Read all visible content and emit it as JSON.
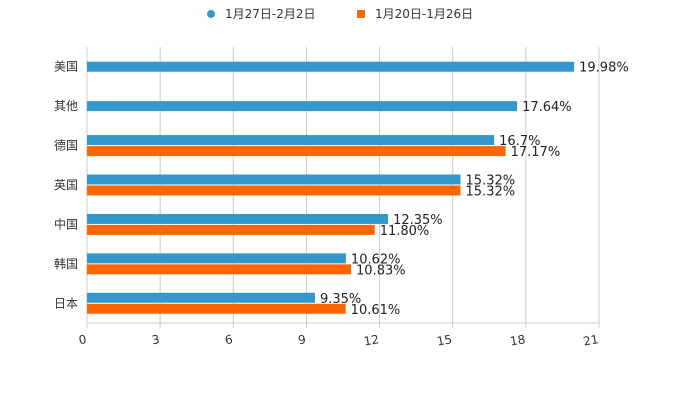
{
  "chart_data": {
    "type": "bar",
    "orientation": "horizontal",
    "categories": [
      "美国",
      "其他",
      "德国",
      "英国",
      "中国",
      "韩国",
      "日本"
    ],
    "series": [
      {
        "name": "1月27日-2月2日",
        "color": "#3399cc",
        "values": [
          19.98,
          17.64,
          16.7,
          15.32,
          12.35,
          10.62,
          9.35
        ],
        "labels": [
          "19.98%",
          "17.64%",
          "16.7%",
          "15.32%",
          "12.35%",
          "10.62%",
          "9.35%"
        ]
      },
      {
        "name": "1月20日-1月26日",
        "color": "#ff6600",
        "values": [
          null,
          null,
          17.17,
          15.32,
          11.8,
          10.83,
          10.61
        ],
        "labels": [
          null,
          null,
          "17.17%",
          "15.32%",
          "11.80%",
          "10.83%",
          "10.61%"
        ]
      }
    ],
    "xlim": [
      0,
      21
    ],
    "xticks": [
      "0",
      "3",
      "6",
      "9",
      "12",
      "15",
      "18",
      "21"
    ],
    "grid": true,
    "legend": "top-center",
    "title": "",
    "xlabel": "",
    "ylabel": ""
  }
}
